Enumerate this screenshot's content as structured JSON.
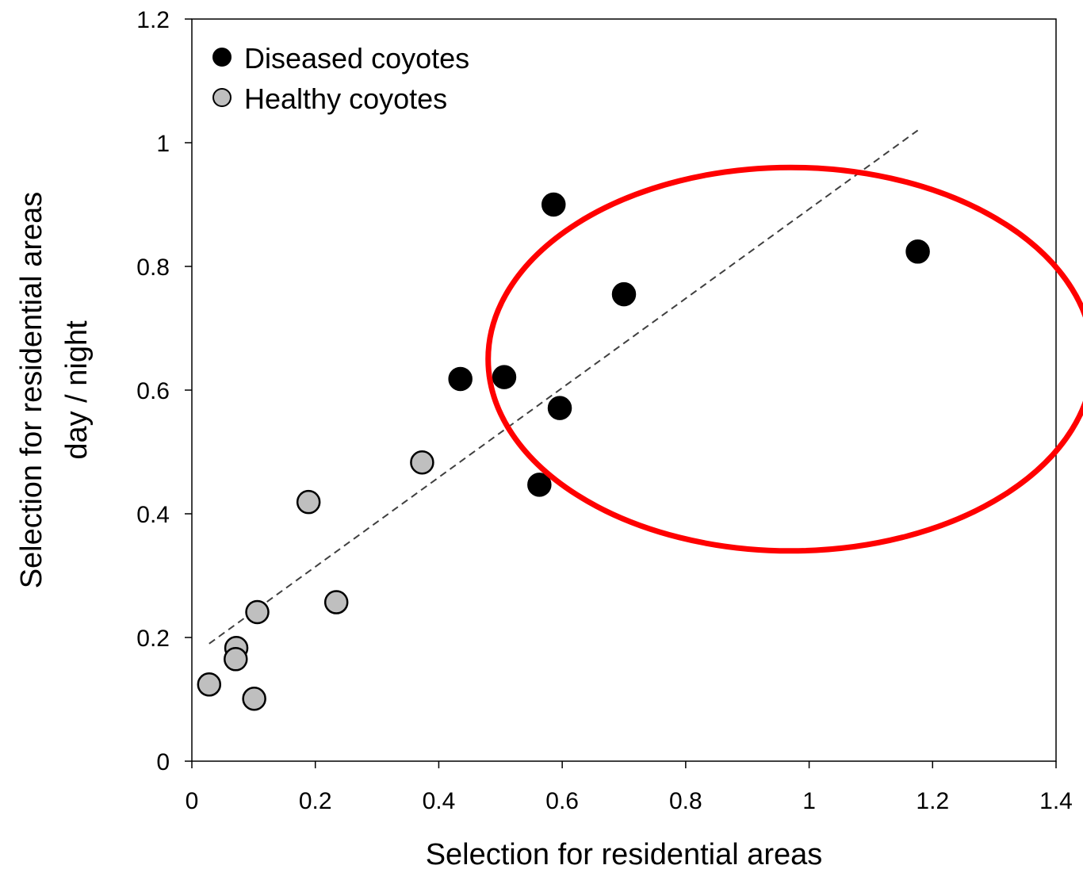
{
  "chart_data": {
    "type": "scatter",
    "xlabel": "Selection for residential areas",
    "ylabel_lines": [
      "Selection for residential areas",
      "day / night"
    ],
    "xlim": [
      0,
      1.4
    ],
    "ylim": [
      0,
      1.2
    ],
    "x_ticks": [
      0,
      0.2,
      0.4,
      0.6,
      0.8,
      1.0,
      1.2,
      1.4
    ],
    "x_tick_labels": [
      "0",
      "0.2",
      "0.4",
      "0.6",
      "0.8",
      "1",
      "1.2",
      "1.4"
    ],
    "y_ticks": [
      0,
      0.2,
      0.4,
      0.6,
      0.8,
      1.0,
      1.2
    ],
    "y_tick_labels": [
      "0",
      "0.2",
      "0.4",
      "0.6",
      "0.8",
      "1",
      "1.2"
    ],
    "grid": false,
    "legend_position": "top-left",
    "series": [
      {
        "name": "Diseased coyotes",
        "color": "#000000",
        "points": [
          {
            "x": 0.435,
            "y": 0.618
          },
          {
            "x": 0.506,
            "y": 0.621
          },
          {
            "x": 0.563,
            "y": 0.447
          },
          {
            "x": 0.586,
            "y": 0.9
          },
          {
            "x": 0.596,
            "y": 0.571
          },
          {
            "x": 0.7,
            "y": 0.755
          },
          {
            "x": 1.176,
            "y": 0.824
          }
        ]
      },
      {
        "name": "Healthy coyotes",
        "color": "#bfbfbf",
        "points": [
          {
            "x": 0.028,
            "y": 0.124
          },
          {
            "x": 0.072,
            "y": 0.183
          },
          {
            "x": 0.071,
            "y": 0.165
          },
          {
            "x": 0.101,
            "y": 0.101
          },
          {
            "x": 0.106,
            "y": 0.241
          },
          {
            "x": 0.189,
            "y": 0.419
          },
          {
            "x": 0.234,
            "y": 0.257
          },
          {
            "x": 0.373,
            "y": 0.483
          }
        ]
      }
    ],
    "trendline": {
      "style": "dashed",
      "color": "#404040",
      "from": {
        "x": 0.028,
        "y": 0.19
      },
      "to": {
        "x": 1.176,
        "y": 1.02
      }
    },
    "annotation": {
      "shape": "ellipse",
      "color": "#ff0000",
      "center": {
        "x": 0.97,
        "y": 0.65
      },
      "radius_x": 0.49,
      "radius_y": 0.31
    }
  }
}
